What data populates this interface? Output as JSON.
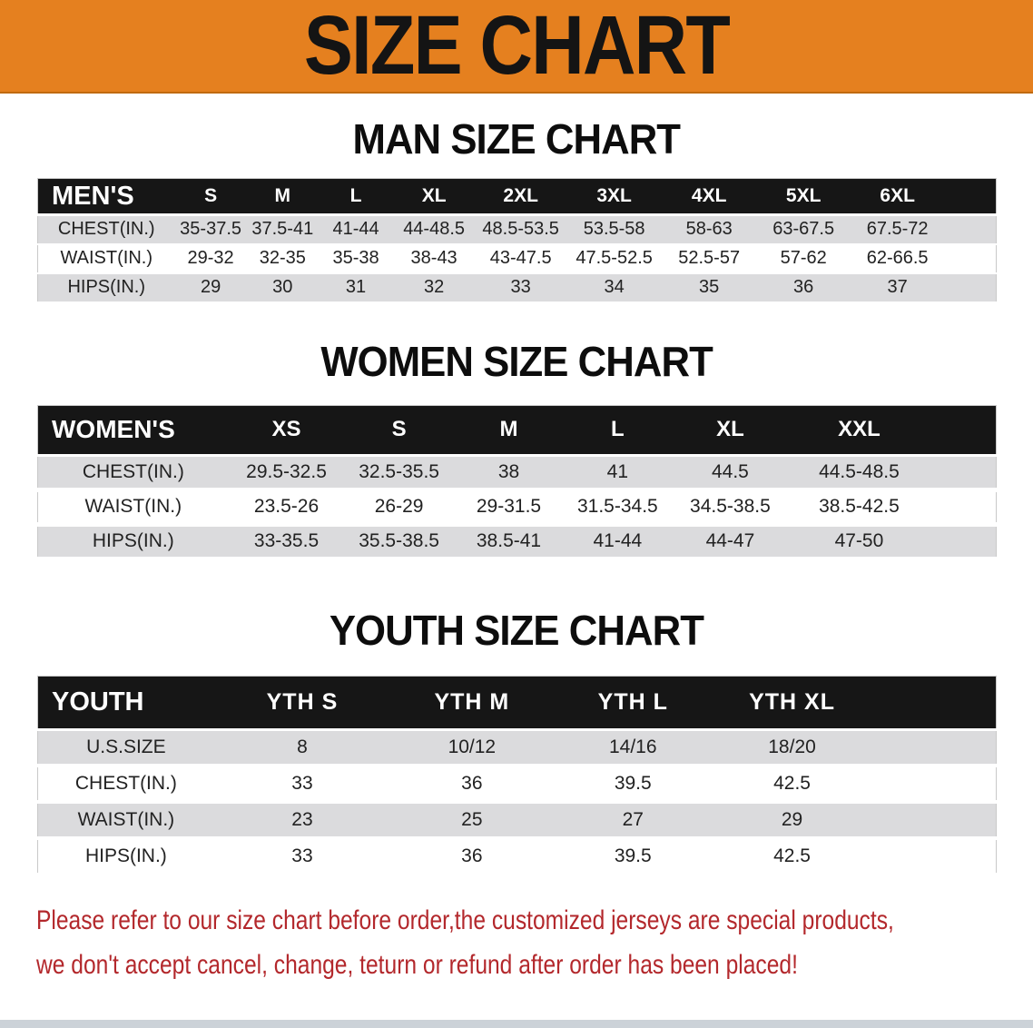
{
  "banner": {
    "title": "SIZE CHART"
  },
  "colors": {
    "banner_bg": "#e5801f",
    "header_bar": "#161616",
    "row_stripe": "#dbdbdd",
    "disclaimer_red": "#b3282c"
  },
  "tables": [
    {
      "id": "men",
      "title": "MAN SIZE CHART",
      "group_label": "MEN'S",
      "columns": [
        "S",
        "M",
        "L",
        "XL",
        "2XL",
        "3XL",
        "4XL",
        "5XL",
        "6XL"
      ],
      "rows": [
        {
          "label": "CHEST(IN.)",
          "values": [
            "35-37.5",
            "37.5-41",
            "41-44",
            "44-48.5",
            "48.5-53.5",
            "53.5-58",
            "58-63",
            "63-67.5",
            "67.5-72"
          ]
        },
        {
          "label": "WAIST(IN.)",
          "values": [
            "29-32",
            "32-35",
            "35-38",
            "38-43",
            "43-47.5",
            "47.5-52.5",
            "52.5-57",
            "57-62",
            "62-66.5"
          ]
        },
        {
          "label": "HIPS(IN.)",
          "values": [
            "29",
            "30",
            "31",
            "32",
            "33",
            "34",
            "35",
            "36",
            "37"
          ]
        }
      ]
    },
    {
      "id": "women",
      "title": "WOMEN SIZE CHART",
      "group_label": "WOMEN'S",
      "columns": [
        "XS",
        "S",
        "M",
        "L",
        "XL",
        "XXL"
      ],
      "rows": [
        {
          "label": "CHEST(IN.)",
          "values": [
            "29.5-32.5",
            "32.5-35.5",
            "38",
            "41",
            "44.5",
            "44.5-48.5"
          ]
        },
        {
          "label": "WAIST(IN.)",
          "values": [
            "23.5-26",
            "26-29",
            "29-31.5",
            "31.5-34.5",
            "34.5-38.5",
            "38.5-42.5"
          ]
        },
        {
          "label": "HIPS(IN.)",
          "values": [
            "33-35.5",
            "35.5-38.5",
            "38.5-41",
            "41-44",
            "44-47",
            "47-50"
          ]
        }
      ]
    },
    {
      "id": "youth",
      "title": "YOUTH SIZE CHART",
      "group_label": "YOUTH",
      "columns": [
        "YTH S",
        "YTH M",
        "YTH L",
        "YTH XL"
      ],
      "rows": [
        {
          "label": "U.S.SIZE",
          "values": [
            "8",
            "10/12",
            "14/16",
            "18/20"
          ]
        },
        {
          "label": "CHEST(IN.)",
          "values": [
            "33",
            "36",
            "39.5",
            "42.5"
          ]
        },
        {
          "label": "WAIST(IN.)",
          "values": [
            "23",
            "25",
            "27",
            "29"
          ]
        },
        {
          "label": "HIPS(IN.)",
          "values": [
            "33",
            "36",
            "39.5",
            "42.5"
          ]
        }
      ]
    }
  ],
  "disclaimer": {
    "line1": "Please refer to our size chart before order,the customized jerseys are special products,",
    "line2": "we don't accept cancel, change, teturn or refund after order has been placed!"
  }
}
